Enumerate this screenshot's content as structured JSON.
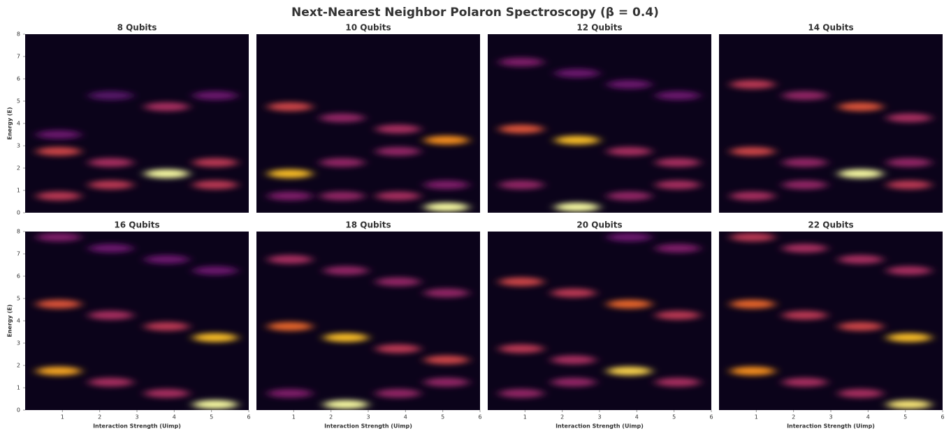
{
  "title": "Next-Nearest Neighbor Polaron Spectroscopy (β = 0.4)",
  "chart_data": [
    {
      "type": "heatmap",
      "title": "8 Qubits",
      "colormap": "inferno",
      "xlim": [
        0,
        6
      ],
      "ylim": [
        0,
        8
      ],
      "ylabel": "Energy (E)",
      "yticks": [
        0,
        1,
        2,
        3,
        4,
        5,
        6,
        7,
        8
      ],
      "x": [
        0.9,
        0.9,
        0.9,
        2.3,
        2.3,
        2.3,
        3.8,
        3.8,
        5.1,
        5.1,
        5.1
      ],
      "y": [
        0.75,
        2.75,
        3.5,
        1.25,
        2.25,
        5.25,
        1.75,
        4.75,
        1.25,
        2.25,
        5.25
      ],
      "values": [
        0.5,
        0.55,
        0.3,
        0.5,
        0.45,
        0.25,
        1.0,
        0.45,
        0.5,
        0.5,
        0.3
      ]
    },
    {
      "type": "heatmap",
      "title": "10 Qubits",
      "colormap": "inferno",
      "xlim": [
        0,
        6
      ],
      "ylim": [
        0,
        8
      ],
      "x": [
        0.9,
        0.9,
        0.9,
        2.3,
        2.3,
        2.3,
        3.8,
        3.8,
        3.8,
        5.1,
        5.1,
        5.1
      ],
      "y": [
        1.75,
        4.75,
        0.75,
        0.75,
        2.25,
        4.25,
        0.75,
        2.75,
        3.75,
        0.25,
        3.25,
        1.25
      ],
      "values": [
        0.85,
        0.55,
        0.35,
        0.4,
        0.4,
        0.4,
        0.45,
        0.4,
        0.45,
        1.0,
        0.75,
        0.35
      ]
    },
    {
      "type": "heatmap",
      "title": "12 Qubits",
      "colormap": "inferno",
      "xlim": [
        0,
        6
      ],
      "ylim": [
        0,
        8
      ],
      "x": [
        2.4,
        2.4,
        0.9,
        0.9,
        0.9,
        3.8,
        3.8,
        3.8,
        5.1,
        5.1,
        5.1,
        2.4
      ],
      "y": [
        0.25,
        3.25,
        3.75,
        6.75,
        1.25,
        0.75,
        2.75,
        5.75,
        1.25,
        2.25,
        5.25,
        6.25
      ],
      "values": [
        1.0,
        0.85,
        0.6,
        0.35,
        0.4,
        0.4,
        0.45,
        0.3,
        0.45,
        0.45,
        0.3,
        0.3
      ]
    },
    {
      "type": "heatmap",
      "title": "14 Qubits",
      "colormap": "inferno",
      "xlim": [
        0,
        6
      ],
      "ylim": [
        0,
        8
      ],
      "x": [
        0.9,
        0.9,
        0.9,
        2.3,
        2.3,
        2.3,
        3.8,
        3.8,
        5.1,
        5.1,
        5.1
      ],
      "y": [
        0.75,
        2.75,
        5.75,
        2.25,
        5.25,
        1.25,
        1.75,
        4.75,
        1.25,
        4.25,
        2.25
      ],
      "values": [
        0.45,
        0.55,
        0.5,
        0.4,
        0.4,
        0.4,
        1.0,
        0.6,
        0.5,
        0.45,
        0.4
      ]
    },
    {
      "type": "heatmap",
      "title": "16 Qubits",
      "colormap": "inferno",
      "xlim": [
        0,
        6
      ],
      "ylim": [
        0,
        8
      ],
      "ylabel": "Energy (E)",
      "yticks": [
        0,
        1,
        2,
        3,
        4,
        5,
        6,
        7,
        8
      ],
      "xlabel": "Interaction Strength (Uimp)",
      "xticks": [
        1,
        2,
        3,
        4,
        5,
        6
      ],
      "x": [
        5.1,
        5.1,
        0.9,
        0.9,
        0.9,
        2.3,
        2.3,
        2.3,
        3.8,
        3.8,
        3.8,
        5.1
      ],
      "y": [
        0.25,
        3.25,
        1.75,
        4.75,
        7.75,
        1.25,
        4.25,
        7.25,
        0.75,
        3.75,
        6.75,
        6.25
      ],
      "values": [
        1.0,
        0.85,
        0.8,
        0.6,
        0.35,
        0.45,
        0.45,
        0.3,
        0.45,
        0.5,
        0.3,
        0.3
      ]
    },
    {
      "type": "heatmap",
      "title": "18 Qubits",
      "colormap": "inferno",
      "xlim": [
        0,
        6
      ],
      "ylim": [
        0,
        8
      ],
      "xlabel": "Interaction Strength (Uimp)",
      "xticks": [
        1,
        2,
        3,
        4,
        5,
        6
      ],
      "x": [
        2.4,
        2.4,
        0.9,
        0.9,
        0.9,
        2.4,
        3.8,
        3.8,
        3.8,
        5.1,
        5.1,
        5.1
      ],
      "y": [
        0.25,
        3.25,
        3.75,
        6.75,
        0.75,
        6.25,
        2.75,
        5.75,
        0.75,
        2.25,
        5.25,
        1.25
      ],
      "values": [
        1.0,
        0.85,
        0.65,
        0.45,
        0.35,
        0.4,
        0.5,
        0.4,
        0.4,
        0.55,
        0.4,
        0.4
      ]
    },
    {
      "type": "heatmap",
      "title": "20 Qubits",
      "colormap": "inferno",
      "xlim": [
        0,
        6
      ],
      "ylim": [
        0,
        8
      ],
      "xlabel": "Interaction Strength (Uimp)",
      "xticks": [
        1,
        2,
        3,
        4,
        5,
        6
      ],
      "x": [
        3.8,
        3.8,
        0.9,
        0.9,
        0.9,
        2.3,
        2.3,
        2.3,
        5.1,
        5.1,
        5.1,
        3.8
      ],
      "y": [
        1.75,
        4.75,
        2.75,
        5.75,
        0.75,
        2.25,
        5.25,
        1.25,
        1.25,
        4.25,
        7.25,
        7.75
      ],
      "values": [
        0.9,
        0.65,
        0.5,
        0.55,
        0.4,
        0.45,
        0.5,
        0.4,
        0.45,
        0.5,
        0.35,
        0.3
      ]
    },
    {
      "type": "heatmap",
      "title": "22 Qubits",
      "colormap": "inferno",
      "xlim": [
        0,
        6
      ],
      "ylim": [
        0,
        8
      ],
      "xlabel": "Interaction Strength (Uimp)",
      "xticks": [
        1,
        2,
        3,
        4,
        5,
        6
      ],
      "x": [
        5.1,
        5.1,
        0.9,
        0.9,
        0.9,
        2.3,
        2.3,
        2.3,
        3.8,
        3.8,
        3.8,
        5.1
      ],
      "y": [
        0.25,
        3.25,
        1.75,
        4.75,
        7.75,
        1.25,
        4.25,
        7.25,
        0.75,
        3.75,
        6.75,
        6.25
      ],
      "values": [
        0.95,
        0.85,
        0.75,
        0.65,
        0.5,
        0.45,
        0.5,
        0.45,
        0.45,
        0.55,
        0.45,
        0.45
      ]
    }
  ]
}
